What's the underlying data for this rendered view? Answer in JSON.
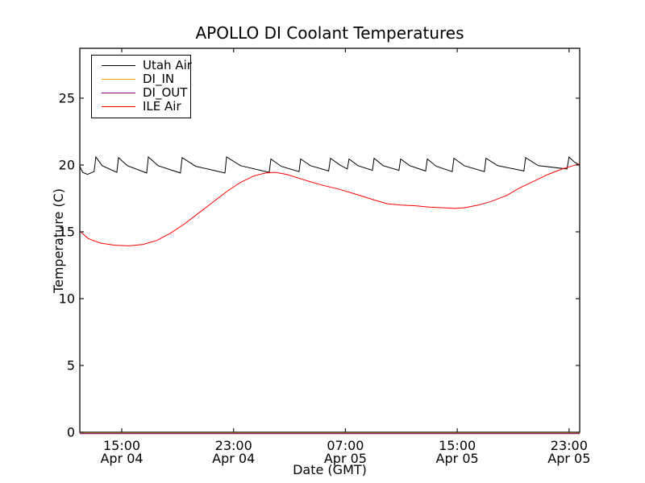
{
  "window": {
    "background": "#ffffff"
  },
  "chart_data": {
    "type": "line",
    "title": "APOLLO DI Coolant Temperatures",
    "xlabel": "Date (GMT)",
    "ylabel": "Temperature (C)",
    "x_unit": "hours since Apr 04 12:00 GMT",
    "xlim": [
      0,
      35.76
    ],
    "ylim": [
      0,
      28.73
    ],
    "y_ticks": [
      0,
      5,
      10,
      15,
      20,
      25
    ],
    "x_ticks": [
      {
        "h": 3,
        "time": "15:00",
        "date": "Apr 04"
      },
      {
        "h": 11,
        "time": "23:00",
        "date": "Apr 04"
      },
      {
        "h": 19,
        "time": "07:00",
        "date": "Apr 05"
      },
      {
        "h": 27,
        "time": "15:00",
        "date": "Apr 05"
      },
      {
        "h": 35,
        "time": "23:00",
        "date": "Apr 05"
      }
    ],
    "grid": false,
    "legend_position": "upper left",
    "series": [
      {
        "name": "Utah Air",
        "color": "#000000",
        "points": [
          [
            0,
            19.9
          ],
          [
            0.2,
            19.45
          ],
          [
            0.55,
            19.3
          ],
          [
            1.02,
            19.5
          ],
          [
            1.15,
            20.6
          ],
          [
            1.6,
            19.95
          ],
          [
            2.65,
            19.45
          ],
          [
            2.77,
            20.55
          ],
          [
            3.4,
            19.95
          ],
          [
            4.78,
            19.4
          ],
          [
            4.9,
            20.6
          ],
          [
            5.6,
            19.95
          ],
          [
            7.2,
            19.4
          ],
          [
            7.32,
            20.55
          ],
          [
            8.3,
            19.9
          ],
          [
            10.38,
            19.4
          ],
          [
            10.5,
            20.6
          ],
          [
            11.5,
            19.95
          ],
          [
            13.55,
            19.45
          ],
          [
            13.67,
            20.45
          ],
          [
            14.4,
            19.9
          ],
          [
            15.68,
            19.5
          ],
          [
            15.8,
            20.45
          ],
          [
            16.5,
            19.95
          ],
          [
            17.8,
            19.55
          ],
          [
            17.93,
            20.5
          ],
          [
            18.6,
            20.0
          ],
          [
            19.14,
            19.7
          ],
          [
            19.26,
            20.45
          ],
          [
            19.9,
            19.95
          ],
          [
            20.93,
            19.6
          ],
          [
            21.05,
            20.5
          ],
          [
            21.7,
            19.95
          ],
          [
            22.83,
            19.6
          ],
          [
            22.95,
            20.45
          ],
          [
            23.6,
            19.95
          ],
          [
            24.74,
            19.55
          ],
          [
            24.86,
            20.45
          ],
          [
            25.5,
            19.9
          ],
          [
            26.64,
            19.5
          ],
          [
            26.76,
            20.5
          ],
          [
            27.5,
            19.95
          ],
          [
            28.94,
            19.5
          ],
          [
            29.06,
            20.5
          ],
          [
            29.9,
            19.95
          ],
          [
            31.77,
            19.55
          ],
          [
            31.89,
            20.55
          ],
          [
            32.8,
            19.95
          ],
          [
            34.85,
            19.7
          ],
          [
            35.0,
            20.6
          ],
          [
            35.4,
            20.2
          ],
          [
            35.76,
            20.0
          ]
        ]
      },
      {
        "name": "DI_IN",
        "color": "#ffa500",
        "points": [
          [
            0,
            0
          ],
          [
            35.76,
            0
          ]
        ]
      },
      {
        "name": "DI_OUT",
        "color": "#800080",
        "points": [
          [
            0,
            0
          ],
          [
            35.76,
            0
          ]
        ]
      },
      {
        "name": "ILE Air",
        "color": "#ff0000",
        "points": [
          [
            0,
            15.05
          ],
          [
            0.6,
            14.5
          ],
          [
            1.5,
            14.15
          ],
          [
            2.5,
            14.0
          ],
          [
            3.5,
            13.95
          ],
          [
            4.5,
            14.05
          ],
          [
            5.5,
            14.35
          ],
          [
            6.5,
            14.9
          ],
          [
            7.5,
            15.6
          ],
          [
            8.5,
            16.4
          ],
          [
            9.5,
            17.2
          ],
          [
            10.5,
            18.0
          ],
          [
            11.5,
            18.7
          ],
          [
            12.5,
            19.2
          ],
          [
            13.3,
            19.4
          ],
          [
            14.0,
            19.45
          ],
          [
            14.8,
            19.3
          ],
          [
            16.0,
            18.9
          ],
          [
            17.3,
            18.5
          ],
          [
            18.5,
            18.2
          ],
          [
            19.8,
            17.8
          ],
          [
            21.0,
            17.4
          ],
          [
            22.0,
            17.1
          ],
          [
            23.0,
            17.0
          ],
          [
            24.0,
            16.95
          ],
          [
            25.0,
            16.85
          ],
          [
            26.0,
            16.8
          ],
          [
            26.8,
            16.75
          ],
          [
            27.5,
            16.8
          ],
          [
            28.5,
            17.0
          ],
          [
            29.5,
            17.3
          ],
          [
            30.5,
            17.7
          ],
          [
            31.5,
            18.3
          ],
          [
            32.5,
            18.8
          ],
          [
            33.5,
            19.3
          ],
          [
            34.5,
            19.7
          ],
          [
            35.3,
            19.95
          ],
          [
            35.76,
            20.1
          ]
        ]
      }
    ]
  }
}
